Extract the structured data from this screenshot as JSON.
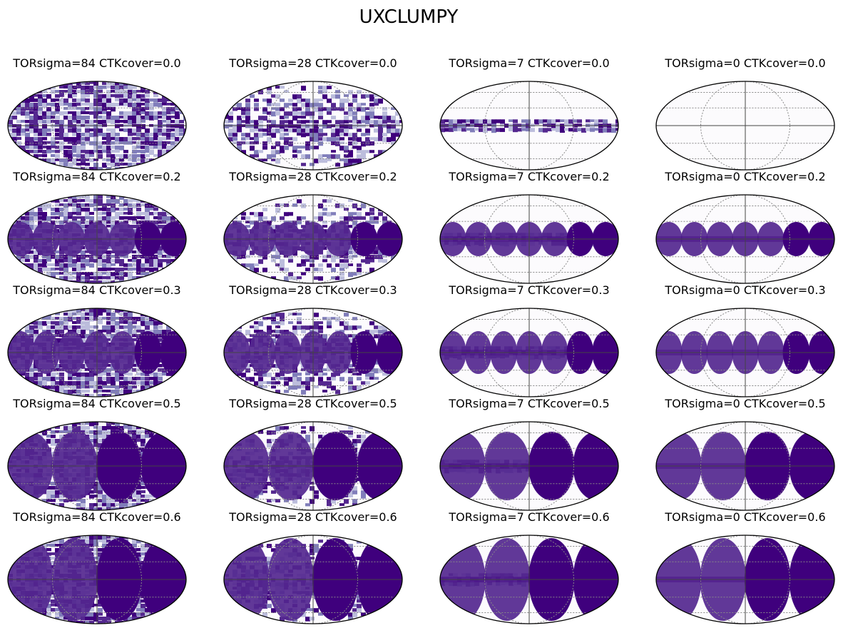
{
  "figure": {
    "title": "UXCLUMPY",
    "colors": {
      "background": "#ffffff",
      "fill_dark": "#3f007d",
      "fill_mid": "#54278f",
      "fill_light": "#807dba",
      "fill_pale": "#bcbddc",
      "empty": "#fcfbfd",
      "outline": "#000000",
      "grid": "#888888"
    }
  },
  "chart_data": {
    "type": "heatmap",
    "projection": "mollweide",
    "colormap": "Purples",
    "grid": true,
    "rows": [
      "0.0",
      "0.2",
      "0.3",
      "0.5",
      "0.6"
    ],
    "cols": [
      "84",
      "28",
      "7",
      "0"
    ],
    "panels": [
      {
        "title": "TORsigma=84 CTKcover=0.0",
        "tor_sigma": 84,
        "ctk_cover": 0.0
      },
      {
        "title": "TORsigma=28 CTKcover=0.0",
        "tor_sigma": 28,
        "ctk_cover": 0.0
      },
      {
        "title": "TORsigma=7 CTKcover=0.0",
        "tor_sigma": 7,
        "ctk_cover": 0.0
      },
      {
        "title": "TORsigma=0 CTKcover=0.0",
        "tor_sigma": 0,
        "ctk_cover": 0.0
      },
      {
        "title": "TORsigma=84 CTKcover=0.2",
        "tor_sigma": 84,
        "ctk_cover": 0.2
      },
      {
        "title": "TORsigma=28 CTKcover=0.2",
        "tor_sigma": 28,
        "ctk_cover": 0.2
      },
      {
        "title": "TORsigma=7 CTKcover=0.2",
        "tor_sigma": 7,
        "ctk_cover": 0.2
      },
      {
        "title": "TORsigma=0 CTKcover=0.2",
        "tor_sigma": 0,
        "ctk_cover": 0.2
      },
      {
        "title": "TORsigma=84 CTKcover=0.3",
        "tor_sigma": 84,
        "ctk_cover": 0.3
      },
      {
        "title": "TORsigma=28 CTKcover=0.3",
        "tor_sigma": 28,
        "ctk_cover": 0.3
      },
      {
        "title": "TORsigma=7 CTKcover=0.3",
        "tor_sigma": 7,
        "ctk_cover": 0.3
      },
      {
        "title": "TORsigma=0 CTKcover=0.3",
        "tor_sigma": 0,
        "ctk_cover": 0.3
      },
      {
        "title": "TORsigma=84 CTKcover=0.5",
        "tor_sigma": 84,
        "ctk_cover": 0.5
      },
      {
        "title": "TORsigma=28 CTKcover=0.5",
        "tor_sigma": 28,
        "ctk_cover": 0.5
      },
      {
        "title": "TORsigma=7 CTKcover=0.5",
        "tor_sigma": 7,
        "ctk_cover": 0.5
      },
      {
        "title": "TORsigma=0 CTKcover=0.5",
        "tor_sigma": 0,
        "ctk_cover": 0.5
      },
      {
        "title": "TORsigma=84 CTKcover=0.6",
        "tor_sigma": 84,
        "ctk_cover": 0.6
      },
      {
        "title": "TORsigma=28 CTKcover=0.6",
        "tor_sigma": 28,
        "ctk_cover": 0.6
      },
      {
        "title": "TORsigma=7 CTKcover=0.6",
        "tor_sigma": 7,
        "ctk_cover": 0.6
      },
      {
        "title": "TORsigma=0 CTKcover=0.6",
        "tor_sigma": 0,
        "ctk_cover": 0.6
      }
    ]
  }
}
